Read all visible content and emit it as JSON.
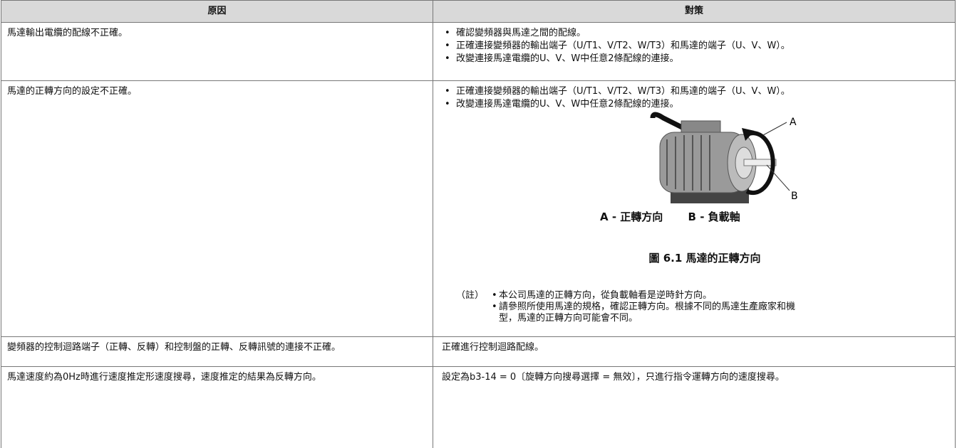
{
  "table": {
    "headers": [
      "原因",
      "對策"
    ],
    "rows": [
      {
        "cause": "馬達輸出電纜的配線不正確。",
        "measures": [
          "確認變頻器與馬達之間的配線。",
          "正確連接變頻器的輸出端子（U/T1、V/T2、W/T3）和馬達的端子（U、V、W）。",
          "改變連接馬達電纜的U、V、W中任意2條配線的連接。"
        ]
      },
      {
        "cause": "馬達的正轉方向的設定不正確。",
        "measures": [
          "正確連接變頻器的輸出端子（U/T1、V/T2、W/T3）和馬達的端子（U、V、W）。",
          "改變連接馬達電纜的U、V、W中任意2條配線的連接。"
        ],
        "figure": {
          "labels": [
            "A",
            "B"
          ],
          "legend": [
            {
              "key": "A -",
              "text": "正轉方向"
            },
            {
              "key": "B -",
              "text": "負載軸"
            }
          ],
          "caption": "圖 6.1 馬達的正轉方向"
        },
        "note": {
          "label": "（註）",
          "items": [
            "本公司馬達的正轉方向，從負載軸看是逆時針方向。",
            "請參照所使用馬達的規格，確認正轉方向。根據不同的馬達生產廠家和機型，馬達的正轉方向可能會不同。"
          ]
        }
      },
      {
        "cause": "變頻器的控制迴路端子（正轉、反轉）和控制盤的正轉、反轉訊號的連接不正確。",
        "measures": [
          "正確進行控制迴路配線。"
        ]
      },
      {
        "cause": "馬達速度約為0Hz時進行速度推定形速度搜尋，速度推定的結果為反轉方向。",
        "measures": [
          "設定為b3-14 = 0〔旋轉方向搜尋選擇 = 無效〕，只進行指令運轉方向的速度搜尋。"
        ]
      }
    ]
  }
}
